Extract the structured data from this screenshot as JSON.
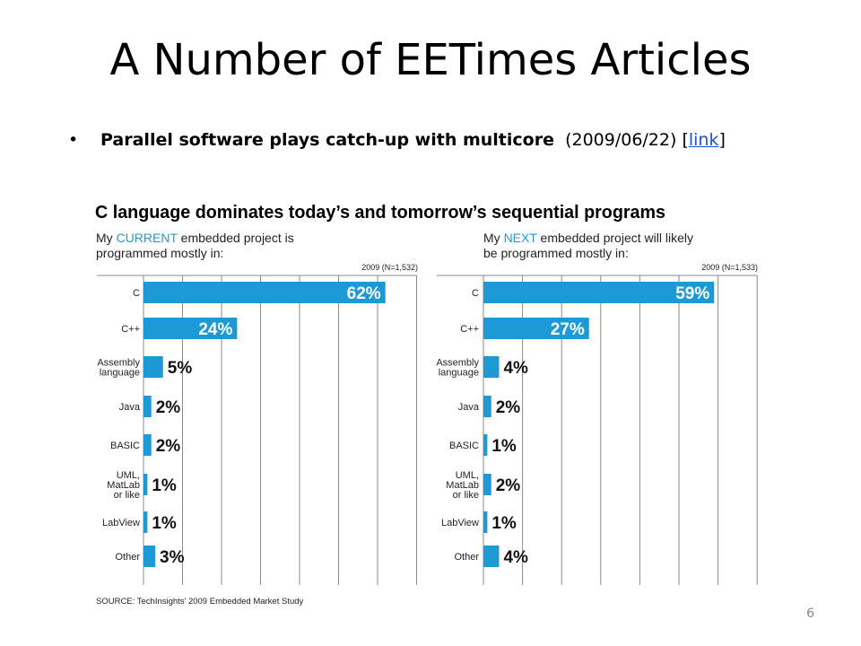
{
  "slide": {
    "title": "A Number of EETimes Articles",
    "bullet": {
      "headline": "Parallel software plays catch-up with multicore",
      "date": "(2009/06/22)",
      "link_open": "[",
      "link_text": "link",
      "link_close": "]"
    },
    "page_number": "6"
  },
  "figure": {
    "title": "C language dominates today’s and tomorrow’s sequential programs",
    "source": "SOURCE: TechInsights’ 2009 Embedded Market Study",
    "bar_color": "#1d9ad6",
    "grid_color": "#8a8a8a"
  },
  "chart_data": [
    {
      "type": "bar",
      "orientation": "horizontal",
      "subtitle_parts": [
        "My ",
        "CURRENT",
        " embedded project is",
        "programmed mostly in:"
      ],
      "sample_note": "2009 (N=1,532)",
      "categories": [
        [
          "C"
        ],
        [
          "C++"
        ],
        [
          "Assembly",
          "language"
        ],
        [
          "Java"
        ],
        [
          "BASIC"
        ],
        [
          "UML,",
          "MatLab",
          "or like"
        ],
        [
          "LabView"
        ],
        [
          "Other"
        ]
      ],
      "values": [
        62,
        24,
        5,
        2,
        2,
        1,
        1,
        3
      ],
      "value_labels": [
        "62%",
        "24%",
        "5%",
        "2%",
        "2%",
        "1%",
        "1%",
        "3%"
      ],
      "xlim": [
        0,
        70
      ],
      "grid": true
    },
    {
      "type": "bar",
      "orientation": "horizontal",
      "subtitle_parts": [
        "My ",
        "NEXT",
        " embedded project will likely",
        "be programmed mostly in:"
      ],
      "sample_note": "2009 (N=1,533)",
      "categories": [
        [
          "C"
        ],
        [
          "C++"
        ],
        [
          "Assembly",
          "language"
        ],
        [
          "Java"
        ],
        [
          "BASIC"
        ],
        [
          "UML,",
          "MatLab",
          "or like"
        ],
        [
          "LabView"
        ],
        [
          "Other"
        ]
      ],
      "values": [
        59,
        27,
        4,
        2,
        1,
        2,
        1,
        4
      ],
      "value_labels": [
        "59%",
        "27%",
        "4%",
        "2%",
        "1%",
        "2%",
        "1%",
        "4%"
      ],
      "xlim": [
        0,
        70
      ],
      "grid": true
    }
  ]
}
